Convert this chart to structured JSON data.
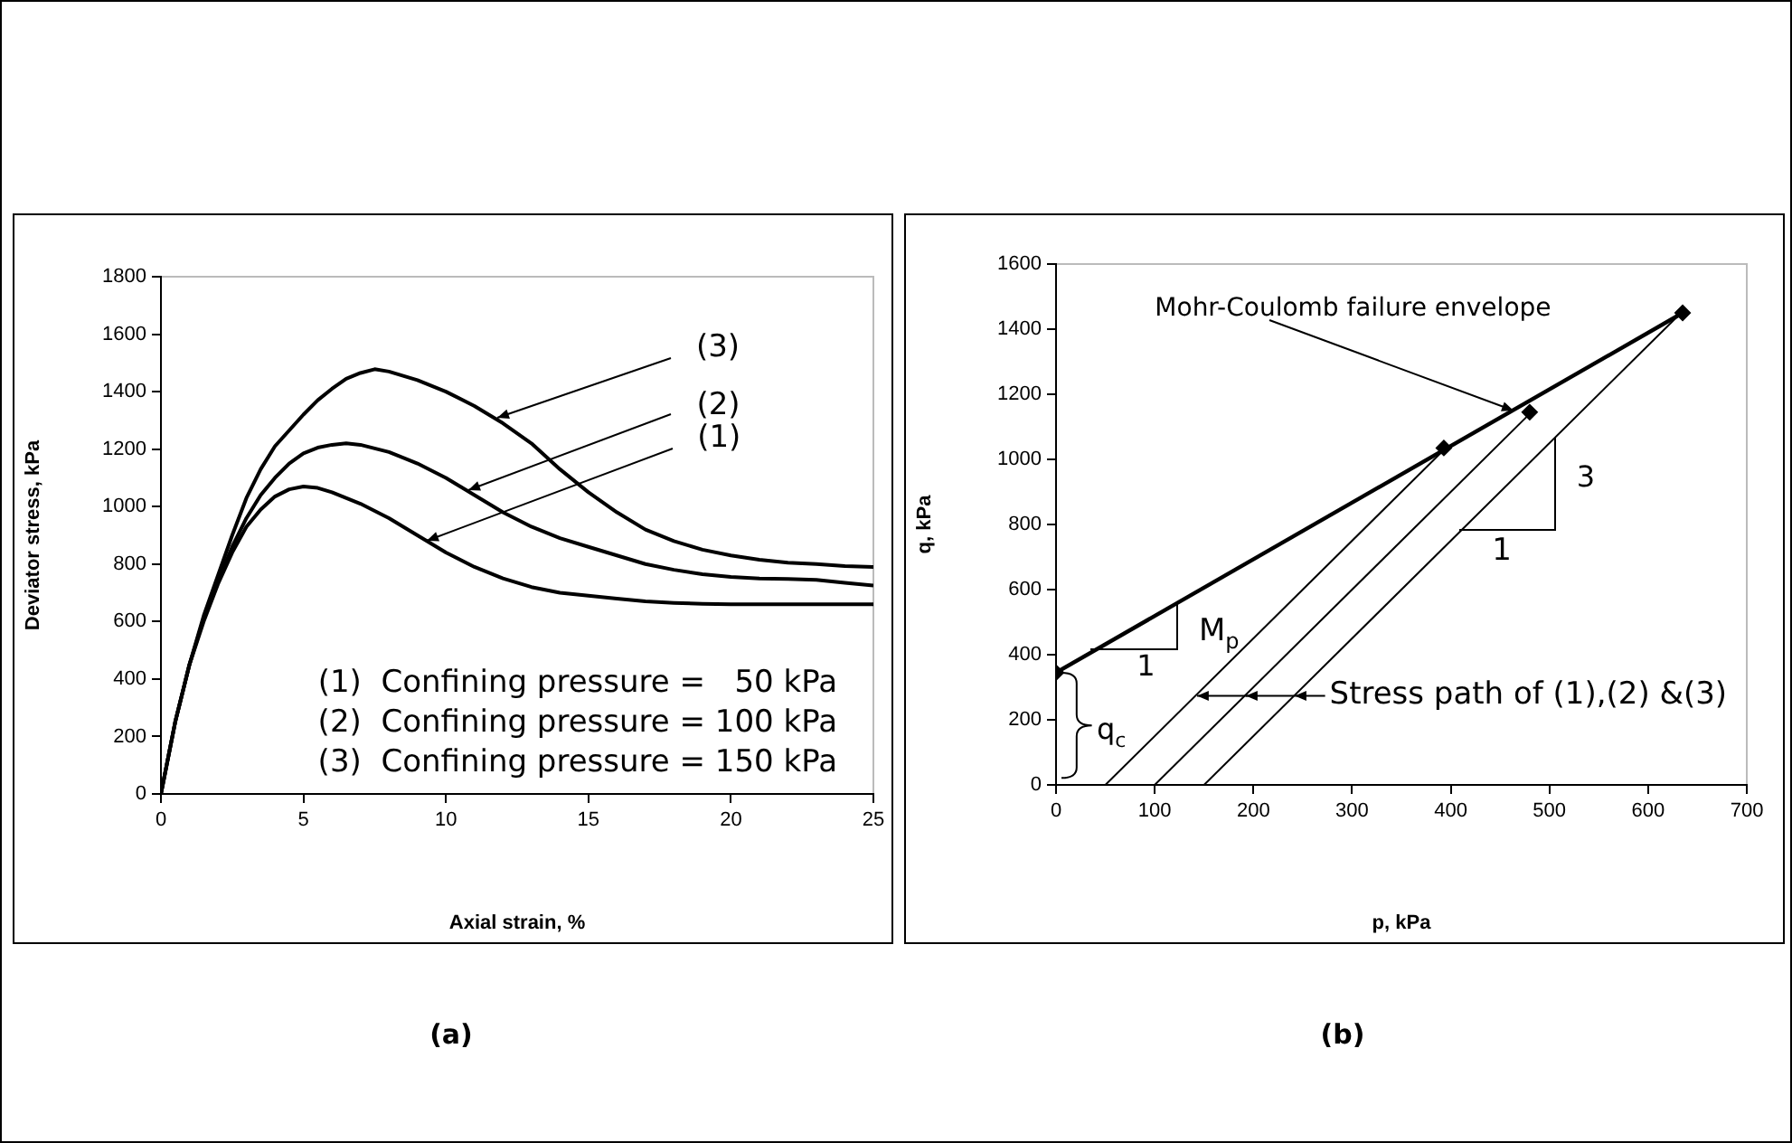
{
  "chart_data": [
    {
      "type": "line",
      "xlabel": "Axial strain, %",
      "ylabel": "Deviator stress, kPa",
      "xlim": [
        0,
        25
      ],
      "xticks": [
        0,
        5,
        10,
        15,
        20,
        25
      ],
      "ylim": [
        0,
        1800
      ],
      "yticks": [
        0,
        200,
        400,
        600,
        800,
        1000,
        1200,
        1400,
        1600,
        1800
      ],
      "grid": false,
      "legend": false,
      "marker": "none",
      "line_style": "solid",
      "series": [
        {
          "color": "#000000",
          "x": [
            0,
            0.5,
            1,
            1.5,
            2,
            2.5,
            3,
            3.5,
            4,
            4.5,
            5,
            5.5,
            6,
            7,
            8,
            9,
            10,
            11,
            12,
            13,
            14,
            15,
            16,
            17,
            18,
            19,
            20,
            22,
            25
          ],
          "values": [
            0,
            250,
            450,
            600,
            730,
            840,
            930,
            990,
            1035,
            1060,
            1070,
            1065,
            1050,
            1010,
            960,
            900,
            840,
            790,
            750,
            720,
            700,
            690,
            680,
            670,
            665,
            662,
            660,
            660,
            660
          ]
        },
        {
          "color": "#000000",
          "x": [
            0,
            0.5,
            1,
            1.5,
            2,
            2.5,
            3,
            3.5,
            4,
            4.5,
            5,
            5.5,
            6,
            6.5,
            7,
            8,
            9,
            10,
            11,
            12,
            13,
            14,
            15,
            16,
            17,
            18,
            19,
            20,
            21,
            22,
            23,
            24,
            25
          ],
          "values": [
            0,
            250,
            450,
            610,
            740,
            860,
            960,
            1040,
            1100,
            1150,
            1185,
            1205,
            1215,
            1220,
            1215,
            1190,
            1150,
            1100,
            1040,
            980,
            930,
            890,
            860,
            830,
            800,
            780,
            765,
            755,
            750,
            748,
            745,
            735,
            725
          ]
        },
        {
          "color": "#000000",
          "x": [
            0,
            0.5,
            1,
            1.5,
            2,
            2.5,
            3,
            3.5,
            4,
            5,
            5.5,
            6,
            6.5,
            7,
            7.5,
            8,
            9,
            10,
            11,
            12,
            13,
            14,
            15,
            16,
            17,
            18,
            19,
            20,
            21,
            22,
            23,
            24,
            25
          ],
          "values": [
            0,
            250,
            450,
            620,
            760,
            900,
            1030,
            1130,
            1210,
            1320,
            1370,
            1410,
            1445,
            1465,
            1478,
            1470,
            1440,
            1400,
            1350,
            1290,
            1220,
            1130,
            1050,
            980,
            920,
            880,
            850,
            830,
            815,
            805,
            800,
            793,
            790
          ]
        }
      ],
      "annotations": [
        "(1)  Confining pressure =   50 kPa",
        "(2)  Confining pressure = 100 kPa",
        "(3)  Confining pressure = 150 kPa",
        {
          "text": "(3)",
          "x": 11.8,
          "y": 1311
        },
        {
          "text": "(2)",
          "x": 10.8,
          "y": 1055
        },
        {
          "text": "(1)",
          "x": 9.3,
          "y": 883
        },
        "(a)"
      ]
    },
    {
      "type": "line",
      "xlabel": "p, kPa",
      "ylabel": "q, kPa",
      "xlim": [
        0,
        700
      ],
      "xticks": [
        0,
        100,
        200,
        300,
        400,
        500,
        600,
        700
      ],
      "ylim": [
        0,
        1600
      ],
      "yticks": [
        0,
        200,
        400,
        600,
        800,
        1000,
        1200,
        1400,
        1600
      ],
      "grid": false,
      "legend": false,
      "line_style": "solid",
      "series": [
        {
          "type": "line",
          "color": "#000000",
          "x": [
            0,
            635
          ],
          "values": [
            345,
            1450
          ]
        },
        {
          "type": "line",
          "color": "#000000",
          "x": [
            50,
            393
          ],
          "values": [
            0,
            1029
          ]
        },
        {
          "type": "line",
          "color": "#000000",
          "x": [
            100,
            480
          ],
          "values": [
            0,
            1140
          ]
        },
        {
          "type": "line",
          "color": "#000000",
          "x": [
            150,
            635
          ],
          "values": [
            0,
            1455
          ]
        },
        {
          "type": "scatter",
          "color": "#000000",
          "marker": "diamond",
          "x": [
            0,
            393,
            480,
            635
          ],
          "values": [
            345,
            1035,
            1145,
            1450
          ]
        }
      ],
      "annotations": [
        {
          "text": "Mohr-Coulomb failure envelope",
          "x": 464,
          "y": 1150
        },
        "Stress path of (1),(2) &(3)",
        {
          "text": "M$_{p}$",
          "x": 123,
          "y": 559
        },
        "1",
        "3",
        {
          "text": "1",
          "x": 505,
          "y": 1065
        },
        "q$_{c}$",
        "(b)"
      ]
    }
  ]
}
